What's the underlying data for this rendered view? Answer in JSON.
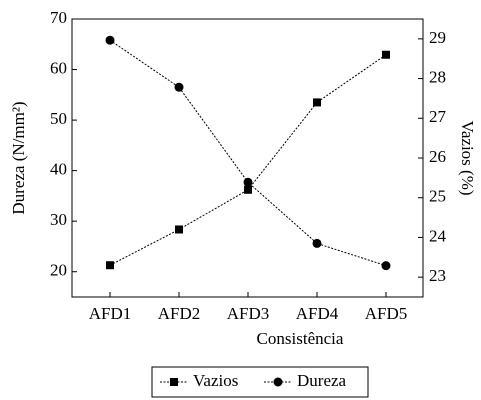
{
  "chart_data": {
    "type": "line",
    "categories": [
      "AFD1",
      "AFD2",
      "AFD3",
      "AFD4",
      "AFD5"
    ],
    "x_label": "Consistência",
    "y_label": "Dureza (N/mm²)",
    "y2_label": "Vazios (%)",
    "ylim": [
      15,
      70
    ],
    "yticks": [
      20,
      30,
      40,
      50,
      60,
      70
    ],
    "y2lim": [
      22.5,
      29.5
    ],
    "y2ticks": [
      23,
      24,
      25,
      26,
      27,
      28,
      29
    ],
    "series": [
      {
        "name": "Vazios",
        "color": "#000000",
        "marker": "square",
        "axis": "y2",
        "values": [
          23.3,
          24.2,
          25.2,
          27.4,
          28.6
        ]
      },
      {
        "name": "Dureza",
        "color": "#000000",
        "marker": "circle",
        "values": [
          65.8,
          56.5,
          37.7,
          25.6,
          21.2
        ]
      }
    ]
  }
}
